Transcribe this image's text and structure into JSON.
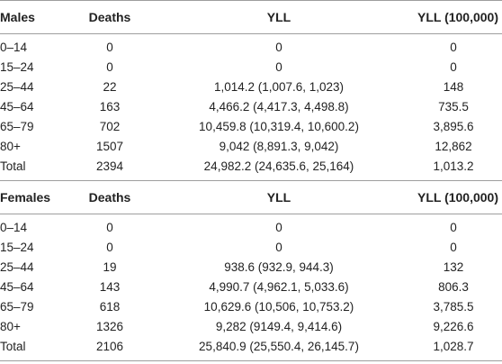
{
  "headers": {
    "deaths": "Deaths",
    "yll": "YLL",
    "yll_rate": "YLL (100,000)"
  },
  "males": {
    "label": "Males",
    "rows": [
      {
        "age": "0–14",
        "deaths": "0",
        "yll": "0",
        "rate": "0"
      },
      {
        "age": "15–24",
        "deaths": "0",
        "yll": "0",
        "rate": "0"
      },
      {
        "age": "25–44",
        "deaths": "22",
        "yll": "1,014.2 (1,007.6, 1,023)",
        "rate": "148"
      },
      {
        "age": "45–64",
        "deaths": "163",
        "yll": "4,466.2 (4,417.3, 4,498.8)",
        "rate": "735.5"
      },
      {
        "age": "65–79",
        "deaths": "702",
        "yll": "10,459.8 (10,319.4, 10,600.2)",
        "rate": "3,895.6"
      },
      {
        "age": "80+",
        "deaths": "1507",
        "yll": "9,042 (8,891.3, 9,042)",
        "rate": "12,862"
      },
      {
        "age": "Total",
        "deaths": "2394",
        "yll": "24,982.2 (24,635.6, 25,164)",
        "rate": "1,013.2"
      }
    ]
  },
  "females": {
    "label": "Females",
    "rows": [
      {
        "age": "0–14",
        "deaths": "0",
        "yll": "0",
        "rate": "0"
      },
      {
        "age": "15–24",
        "deaths": "0",
        "yll": "0",
        "rate": "0"
      },
      {
        "age": "25–44",
        "deaths": "19",
        "yll": "938.6 (932.9, 944.3)",
        "rate": "132"
      },
      {
        "age": "45–64",
        "deaths": "143",
        "yll": "4,990.7 (4,962.1, 5,033.6)",
        "rate": "806.3"
      },
      {
        "age": "65–79",
        "deaths": "618",
        "yll": "10,629.6 (10,506, 10,753.2)",
        "rate": "3,785.5"
      },
      {
        "age": "80+",
        "deaths": "1326",
        "yll": "9,282 (9149.4, 9,414.6)",
        "rate": "9,226.6"
      },
      {
        "age": "Total",
        "deaths": "2106",
        "yll": "25,840.9 (25,550.4, 26,145.7)",
        "rate": "1,028.7"
      }
    ]
  }
}
